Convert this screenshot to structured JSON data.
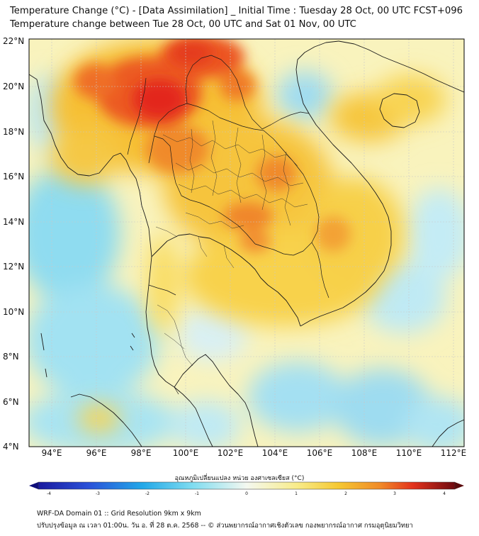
{
  "header": {
    "title_line1": "Temperature Change (°C) - [Data Assimilation] _ Initial Time : Tuesday 28 Oct, 00 UTC FCST+096",
    "title_line2": "Temperature change between Tue 28 Oct, 00 UTC and Sat 01 Nov, 00 UTC"
  },
  "map": {
    "lat_labels": [
      "22°N",
      "20°N",
      "18°N",
      "16°N",
      "14°N",
      "12°N",
      "10°N",
      "8°N",
      "6°N",
      "4°N"
    ],
    "lon_labels": [
      "94°E",
      "96°E",
      "98°E",
      "100°E",
      "102°E",
      "104°E",
      "106°E",
      "108°E",
      "110°E",
      "112°E"
    ],
    "field": "temperature change",
    "unit": "°C"
  },
  "colorbar": {
    "title": "อุณหภูมิเปลี่ยนแปลง หน่วย องศาเซลเซียส (°C)",
    "ticks": [
      "-4",
      "-3",
      "-2",
      "-1",
      "0",
      "1",
      "2",
      "3",
      "4"
    ],
    "min": -4,
    "max": 4,
    "colors": {
      "strong_cool": "#1a1a9e",
      "cool": "#22b8e8",
      "neutral": "#f4f8f0",
      "warm": "#f5d23a",
      "hot": "#e8321e",
      "extreme": "#7a0a10"
    }
  },
  "footer": {
    "line1": "WRF-DA Domain 01 :: Grid Resolution 9km x 9km",
    "line2": "ปรับปรุงข้อมูล ณ เวลา 01:00น. วัน อ. ที่ 28 ต.ค. 2568 -- © ส่วนพยากรณ์อากาศเชิงตัวเลข กองพยากรณ์อากาศ กรมอุตุนิยมวิทยา"
  }
}
